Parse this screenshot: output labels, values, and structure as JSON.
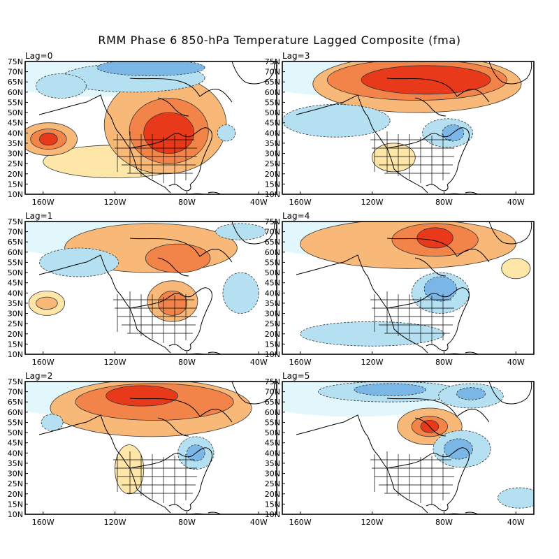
{
  "figure": {
    "title": "RMM Phase 6 850-hPa Temperature Lagged Composite (fma)"
  },
  "axes": {
    "lat_labels": [
      "75N",
      "70N",
      "65N",
      "60N",
      "55N",
      "50N",
      "45N",
      "40N",
      "35N",
      "30N",
      "25N",
      "20N",
      "15N",
      "10N"
    ],
    "lon_labels": [
      "160W",
      "120W",
      "80W",
      "40W"
    ]
  },
  "palette": {
    "warm3": "#e8391a",
    "warm2": "#f2844a",
    "warm1": "#f8b878",
    "warm0": "#fde6a8",
    "cold0": "#e1f7fb",
    "cold1": "#b4e0f2",
    "cold2": "#7ab6e6",
    "cold3": "#4b8ad6"
  },
  "panels": [
    {
      "label": "Lag=0",
      "blobs": [
        {
          "cx": 92,
          "cy": 44,
          "rx": 34,
          "ry": 24,
          "lvl": 1
        },
        {
          "cx": 90,
          "cy": 41,
          "rx": 22,
          "ry": 16,
          "lvl": 2
        },
        {
          "cx": 90,
          "cy": 40,
          "rx": 14,
          "ry": 10,
          "lvl": 3
        },
        {
          "cx": 157,
          "cy": 37,
          "rx": 16,
          "ry": 8,
          "lvl": 1
        },
        {
          "cx": 157,
          "cy": 37,
          "rx": 10,
          "ry": 5,
          "lvl": 2
        },
        {
          "cx": 157,
          "cy": 37,
          "rx": 5,
          "ry": 3,
          "lvl": 3
        },
        {
          "cx": 120,
          "cy": 26,
          "rx": 40,
          "ry": 8,
          "lvl": 0
        },
        {
          "cx": 110,
          "cy": 67,
          "rx": 40,
          "ry": 7,
          "lvl": -1
        },
        {
          "cx": 100,
          "cy": 72,
          "rx": 30,
          "ry": 4,
          "lvl": -2
        },
        {
          "cx": 150,
          "cy": 63,
          "rx": 14,
          "ry": 6,
          "lvl": -1
        },
        {
          "cx": 58,
          "cy": 40,
          "rx": 5,
          "ry": 4,
          "lvl": -1
        }
      ]
    },
    {
      "label": "Lag=3",
      "blobs": [
        {
          "cx": 95,
          "cy": 64,
          "rx": 58,
          "ry": 14,
          "lvl": 1
        },
        {
          "cx": 95,
          "cy": 66,
          "rx": 50,
          "ry": 10,
          "lvl": 2
        },
        {
          "cx": 90,
          "cy": 66,
          "rx": 36,
          "ry": 7,
          "lvl": 3
        },
        {
          "cx": 108,
          "cy": 28,
          "rx": 12,
          "ry": 7,
          "lvl": 0
        },
        {
          "cx": 78,
          "cy": 40,
          "rx": 14,
          "ry": 7,
          "lvl": -1
        },
        {
          "cx": 75,
          "cy": 40,
          "rx": 6,
          "ry": 4,
          "lvl": -2
        },
        {
          "cx": 140,
          "cy": 46,
          "rx": 30,
          "ry": 8,
          "lvl": -1
        }
      ]
    },
    {
      "label": "Lag=1",
      "blobs": [
        {
          "cx": 100,
          "cy": 62,
          "rx": 48,
          "ry": 12,
          "lvl": 1
        },
        {
          "cx": 85,
          "cy": 57,
          "rx": 18,
          "ry": 7,
          "lvl": 2
        },
        {
          "cx": 88,
          "cy": 36,
          "rx": 14,
          "ry": 10,
          "lvl": 1
        },
        {
          "cx": 88,
          "cy": 35,
          "rx": 8,
          "ry": 6,
          "lvl": 2
        },
        {
          "cx": 158,
          "cy": 35,
          "rx": 10,
          "ry": 6,
          "lvl": 0
        },
        {
          "cx": 158,
          "cy": 35,
          "rx": 6,
          "ry": 3,
          "lvl": 1
        },
        {
          "cx": 140,
          "cy": 55,
          "rx": 22,
          "ry": 7,
          "lvl": -1
        },
        {
          "cx": 50,
          "cy": 40,
          "rx": 10,
          "ry": 10,
          "lvl": -1
        },
        {
          "cx": 50,
          "cy": 70,
          "rx": 14,
          "ry": 4,
          "lvl": -1
        }
      ]
    },
    {
      "label": "Lag=4",
      "blobs": [
        {
          "cx": 100,
          "cy": 64,
          "rx": 60,
          "ry": 12,
          "lvl": 1
        },
        {
          "cx": 85,
          "cy": 66,
          "rx": 24,
          "ry": 8,
          "lvl": 2
        },
        {
          "cx": 85,
          "cy": 67,
          "rx": 10,
          "ry": 5,
          "lvl": 3
        },
        {
          "cx": 82,
          "cy": 40,
          "rx": 16,
          "ry": 10,
          "lvl": -1
        },
        {
          "cx": 82,
          "cy": 42,
          "rx": 9,
          "ry": 6,
          "lvl": -2
        },
        {
          "cx": 40,
          "cy": 52,
          "rx": 8,
          "ry": 5,
          "lvl": 0
        },
        {
          "cx": 120,
          "cy": 20,
          "rx": 40,
          "ry": 6,
          "lvl": -1
        }
      ]
    },
    {
      "label": "Lag=2",
      "blobs": [
        {
          "cx": 100,
          "cy": 62,
          "rx": 56,
          "ry": 14,
          "lvl": 1
        },
        {
          "cx": 98,
          "cy": 65,
          "rx": 44,
          "ry": 9,
          "lvl": 2
        },
        {
          "cx": 105,
          "cy": 68,
          "rx": 20,
          "ry": 5,
          "lvl": 3
        },
        {
          "cx": 112,
          "cy": 32,
          "rx": 8,
          "ry": 12,
          "lvl": 0
        },
        {
          "cx": 75,
          "cy": 40,
          "rx": 10,
          "ry": 8,
          "lvl": -1
        },
        {
          "cx": 75,
          "cy": 40,
          "rx": 5,
          "ry": 4,
          "lvl": -2
        },
        {
          "cx": 155,
          "cy": 55,
          "rx": 6,
          "ry": 4,
          "lvl": -1
        }
      ]
    },
    {
      "label": "Lag=5",
      "blobs": [
        {
          "cx": 88,
          "cy": 53,
          "rx": 18,
          "ry": 9,
          "lvl": 1
        },
        {
          "cx": 88,
          "cy": 53,
          "rx": 10,
          "ry": 5,
          "lvl": 2
        },
        {
          "cx": 88,
          "cy": 53,
          "rx": 5,
          "ry": 3,
          "lvl": 3
        },
        {
          "cx": 110,
          "cy": 70,
          "rx": 40,
          "ry": 5,
          "lvl": -1
        },
        {
          "cx": 110,
          "cy": 71,
          "rx": 20,
          "ry": 3,
          "lvl": -2
        },
        {
          "cx": 65,
          "cy": 68,
          "rx": 18,
          "ry": 6,
          "lvl": -1
        },
        {
          "cx": 65,
          "cy": 69,
          "rx": 8,
          "ry": 3,
          "lvl": -2
        },
        {
          "cx": 70,
          "cy": 42,
          "rx": 16,
          "ry": 9,
          "lvl": -1
        },
        {
          "cx": 72,
          "cy": 42,
          "rx": 8,
          "ry": 5,
          "lvl": -2
        },
        {
          "cx": 38,
          "cy": 18,
          "rx": 12,
          "ry": 5,
          "lvl": -1
        }
      ]
    }
  ]
}
